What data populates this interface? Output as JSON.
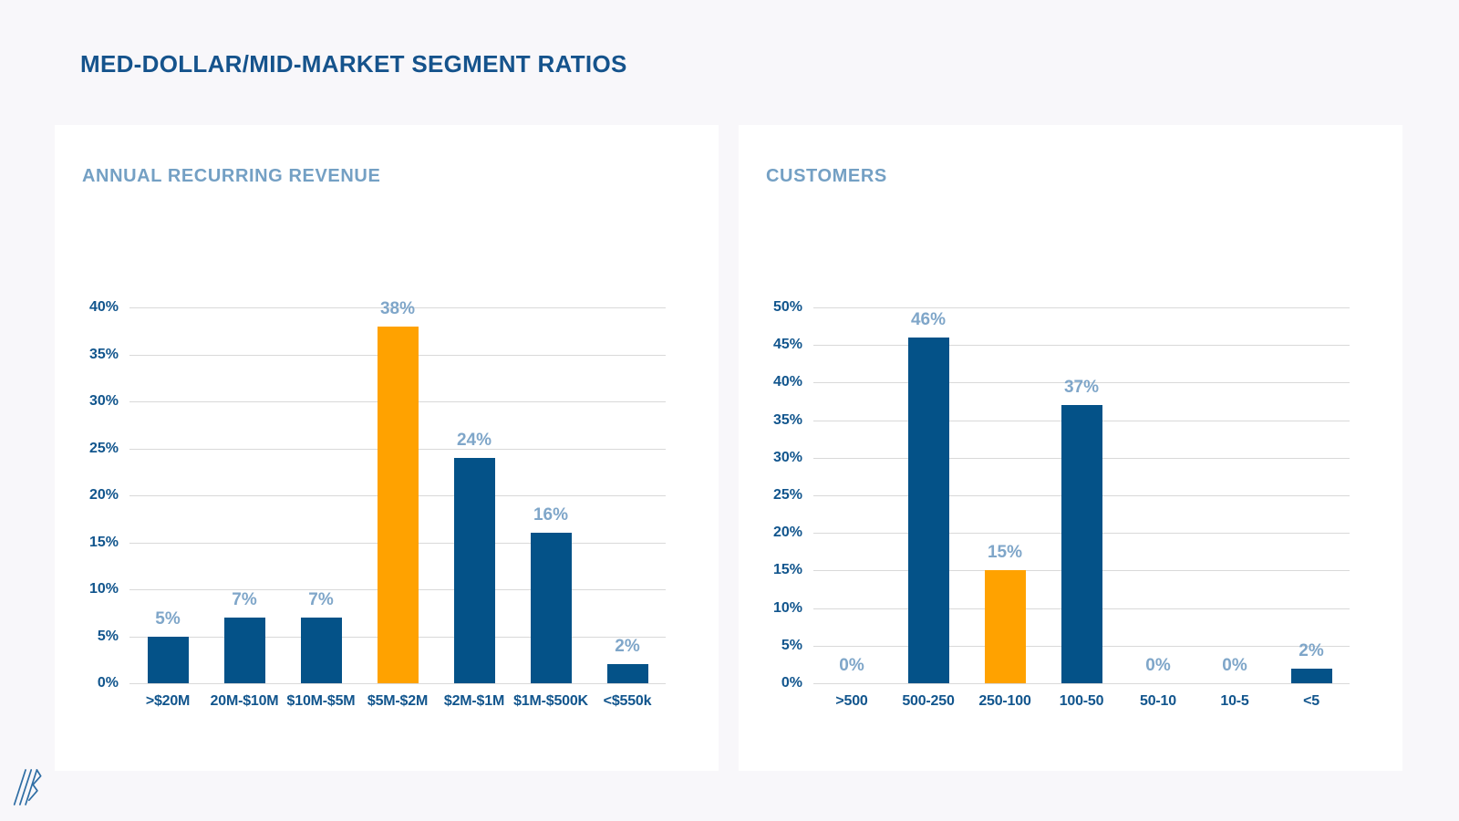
{
  "page": {
    "title": "MED-DOLLAR/MID-MARKET SEGMENT RATIOS"
  },
  "colors": {
    "background": "#f8f7fa",
    "panel_background": "#ffffff",
    "title_text": "#15538c",
    "subtitle_text": "#74a0c4",
    "axis_label": "#11558d",
    "value_label": "#7fa6c9",
    "gridline": "#d9d9d9",
    "bar_blue": "#045288",
    "bar_orange": "#ffa200",
    "logo_stroke": "#2e6da4"
  },
  "footer": {
    "logo_icon": "slash-b-brand-logo"
  },
  "chart_data": [
    {
      "type": "bar",
      "title": "ANNUAL RECURRING REVENUE",
      "categories": [
        ">$20M",
        "20M-$10M",
        "$10M-$5M",
        "$5M-$2M",
        "$2M-$1M",
        "$1M-$500K",
        "<$550k"
      ],
      "values": [
        5,
        7,
        7,
        38,
        24,
        16,
        2
      ],
      "value_labels": [
        "5%",
        "7%",
        "7%",
        "38%",
        "24%",
        "16%",
        "2%"
      ],
      "highlight_index": 3,
      "ylim": [
        0,
        40
      ],
      "yticks": [
        "0%",
        "5%",
        "10%",
        "15%",
        "20%",
        "25%",
        "30%",
        "35%",
        "40%"
      ],
      "grid": true,
      "legend": "none",
      "xlabel": "",
      "ylabel": ""
    },
    {
      "type": "bar",
      "title": "CUSTOMERS",
      "categories": [
        ">500",
        "500-250",
        "250-100",
        "100-50",
        "50-10",
        "10-5",
        "<5"
      ],
      "values": [
        0,
        46,
        15,
        37,
        0,
        0,
        2
      ],
      "value_labels": [
        "0%",
        "46%",
        "15%",
        "37%",
        "0%",
        "0%",
        "2%"
      ],
      "highlight_index": 2,
      "ylim": [
        0,
        50
      ],
      "yticks": [
        "0%",
        "5%",
        "10%",
        "15%",
        "20%",
        "25%",
        "30%",
        "35%",
        "40%",
        "45%",
        "50%"
      ],
      "grid": true,
      "legend": "none",
      "xlabel": "",
      "ylabel": ""
    }
  ]
}
